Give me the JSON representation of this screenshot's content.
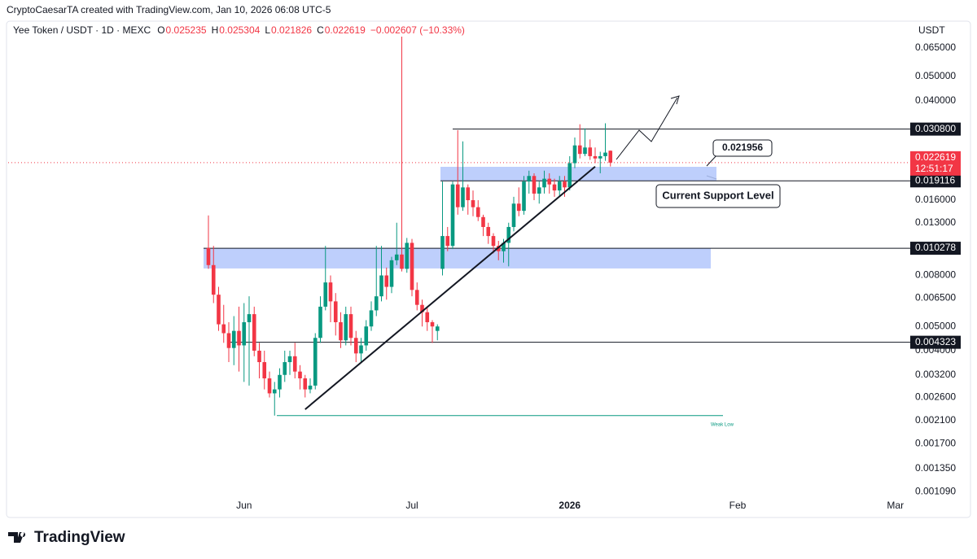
{
  "header": {
    "attribution": "CryptoCaesarTA created with TradingView.com, Jan 10, 2026 06:08 UTC-5"
  },
  "chart_data": {
    "type": "candlestick",
    "symbol": "Yee Token / USDT · 1D · MEXC",
    "ohlc_legend": [
      {
        "label": "O",
        "value": "0.025235"
      },
      {
        "label": "H",
        "value": "0.025304"
      },
      {
        "label": "L",
        "value": "0.021826"
      },
      {
        "label": "C",
        "value": "0.022619"
      }
    ],
    "change": "−0.002607 (−10.33%)",
    "currency": "USDT",
    "log_scale": true,
    "up_color": "#089981",
    "down_color": "#f23645",
    "ylim": [
      0.00103,
      0.082
    ],
    "yticks": [
      {
        "value": 0.065,
        "label": "0.065000"
      },
      {
        "value": 0.05,
        "label": "0.050000"
      },
      {
        "value": 0.04,
        "label": "0.040000"
      },
      {
        "value": 0.016,
        "label": "0.016000"
      },
      {
        "value": 0.013,
        "label": "0.013000"
      },
      {
        "value": 0.008,
        "label": "0.008000"
      },
      {
        "value": 0.0065,
        "label": "0.006500"
      },
      {
        "value": 0.005,
        "label": "0.005000"
      },
      {
        "value": 0.004,
        "label": "0.004000"
      },
      {
        "value": 0.0032,
        "label": "0.003200"
      },
      {
        "value": 0.0026,
        "label": "0.002600"
      },
      {
        "value": 0.0021,
        "label": "0.002100"
      },
      {
        "value": 0.0017,
        "label": "0.001700"
      },
      {
        "value": 0.00135,
        "label": "0.001350"
      },
      {
        "value": 0.00109,
        "label": "0.001090"
      }
    ],
    "current_price": {
      "value": 0.022619,
      "label": "0.022619",
      "countdown": "12:51:17"
    },
    "levels": [
      {
        "value": 0.0308,
        "label": "0.030800"
      },
      {
        "value": 0.019116,
        "label": "0.019116"
      },
      {
        "value": 0.010278,
        "label": "0.010278"
      },
      {
        "value": 0.004323,
        "label": "0.004323"
      }
    ],
    "zones": [
      {
        "low": 0.01916,
        "high": 0.02176
      },
      {
        "low": 0.00853,
        "high": 0.01028
      }
    ],
    "weak_low": {
      "value": 0.0022,
      "label": "Weak Low"
    },
    "trendline": {
      "from": [
        19,
        0.00233
      ],
      "to": [
        76,
        0.0218
      ]
    },
    "annotations": [
      "0.021956",
      "Current Support Level"
    ],
    "categories": [
      null,
      null,
      null,
      null,
      null,
      null,
      null,
      "Jun",
      null,
      null,
      null,
      null,
      null,
      null,
      null,
      null,
      null,
      null,
      null,
      null,
      null,
      null,
      null,
      null,
      null,
      null,
      null,
      null,
      null,
      null,
      null,
      null,
      null,
      null,
      null,
      null,
      null,
      null,
      null,
      null,
      "Jul",
      null,
      null,
      null,
      null,
      null,
      null,
      null,
      null,
      null,
      null,
      null,
      null,
      null,
      null,
      null,
      null,
      null,
      null,
      null,
      null,
      null,
      null,
      null,
      null,
      null,
      null,
      null,
      null,
      null,
      null,
      "2026",
      null,
      null,
      null,
      null,
      null,
      null,
      null,
      null,
      null,
      null,
      null,
      null,
      null,
      null,
      null,
      null,
      null,
      null,
      null,
      null,
      null,
      null,
      null,
      null,
      null,
      null,
      null,
      null,
      null,
      null,
      null,
      null,
      "Feb",
      null,
      null,
      null,
      null,
      null,
      null,
      null,
      null,
      null,
      null,
      null,
      null,
      null,
      null,
      null,
      null,
      null,
      null,
      null,
      null,
      null,
      null,
      null,
      null,
      null,
      null,
      null,
      null,
      null,
      null,
      "Mar"
    ],
    "candles": [
      [
        0.0103,
        0.0139,
        0.0085,
        0.0088
      ],
      [
        0.0088,
        0.0105,
        0.0062,
        0.0067
      ],
      [
        0.0067,
        0.0072,
        0.0048,
        0.0051
      ],
      [
        0.0051,
        0.0061,
        0.0043,
        0.0047
      ],
      [
        0.0047,
        0.0052,
        0.0036,
        0.0041
      ],
      [
        0.0041,
        0.0055,
        0.0035,
        0.0048
      ],
      [
        0.0048,
        0.006,
        0.0033,
        0.0042
      ],
      [
        0.0042,
        0.0062,
        0.003,
        0.0052
      ],
      [
        0.0052,
        0.0066,
        0.0029,
        0.0056
      ],
      [
        0.0056,
        0.006,
        0.0038,
        0.004
      ],
      [
        0.004,
        0.0043,
        0.0031,
        0.0036
      ],
      [
        0.0036,
        0.004,
        0.0028,
        0.0031
      ],
      [
        0.0031,
        0.0033,
        0.0026,
        0.0027
      ],
      [
        0.0027,
        0.003,
        0.0022,
        0.0028
      ],
      [
        0.0028,
        0.0034,
        0.0026,
        0.0032
      ],
      [
        0.0032,
        0.004,
        0.003,
        0.0036
      ],
      [
        0.0036,
        0.004,
        0.0032,
        0.0038
      ],
      [
        0.0038,
        0.0043,
        0.0031,
        0.0033
      ],
      [
        0.0033,
        0.0035,
        0.0028,
        0.0031
      ],
      [
        0.0031,
        0.0032,
        0.0026,
        0.0028
      ],
      [
        0.0028,
        0.0031,
        0.0027,
        0.0029
      ],
      [
        0.0029,
        0.0047,
        0.0028,
        0.0045
      ],
      [
        0.0045,
        0.0066,
        0.0043,
        0.006
      ],
      [
        0.006,
        0.0105,
        0.0058,
        0.0075
      ],
      [
        0.0075,
        0.008,
        0.0052,
        0.0063
      ],
      [
        0.0063,
        0.0068,
        0.0046,
        0.0052
      ],
      [
        0.0052,
        0.0057,
        0.0041,
        0.0044
      ],
      [
        0.0044,
        0.006,
        0.0042,
        0.0056
      ],
      [
        0.0056,
        0.006,
        0.0042,
        0.0045
      ],
      [
        0.0045,
        0.0048,
        0.0036,
        0.0039
      ],
      [
        0.0039,
        0.0045,
        0.0036,
        0.0042
      ],
      [
        0.0042,
        0.0053,
        0.004,
        0.005
      ],
      [
        0.005,
        0.0063,
        0.0048,
        0.0058
      ],
      [
        0.0058,
        0.0105,
        0.0055,
        0.0066
      ],
      [
        0.0066,
        0.0105,
        0.0063,
        0.008
      ],
      [
        0.008,
        0.0086,
        0.0064,
        0.0072
      ],
      [
        0.0072,
        0.0095,
        0.0068,
        0.0092
      ],
      [
        0.0092,
        0.013,
        0.0088,
        0.0097
      ],
      [
        0.0097,
        0.0722,
        0.0083,
        0.0085
      ],
      [
        0.0085,
        0.0113,
        0.0082,
        0.0108
      ],
      [
        0.0108,
        0.0112,
        0.0066,
        0.007
      ],
      [
        0.007,
        0.0075,
        0.0058,
        0.0061
      ],
      [
        0.0061,
        0.0064,
        0.005,
        0.0057
      ],
      [
        0.0057,
        0.006,
        0.0048,
        0.0052
      ],
      [
        0.0052,
        0.0053,
        0.0043,
        0.005
      ],
      [
        0.0048,
        0.0051,
        0.0044,
        0.005
      ],
      [
        0.0085,
        0.019,
        0.008,
        0.0115
      ],
      [
        0.0115,
        0.0125,
        0.01,
        0.0105
      ],
      [
        0.0105,
        0.019,
        0.0102,
        0.0185
      ],
      [
        0.0185,
        0.0305,
        0.014,
        0.015
      ],
      [
        0.015,
        0.0275,
        0.0145,
        0.018
      ],
      [
        0.018,
        0.0185,
        0.014,
        0.016
      ],
      [
        0.016,
        0.0175,
        0.0138,
        0.015
      ],
      [
        0.015,
        0.016,
        0.0132,
        0.0137
      ],
      [
        0.0137,
        0.014,
        0.0115,
        0.0125
      ],
      [
        0.0125,
        0.013,
        0.0107,
        0.0115
      ],
      [
        0.0115,
        0.0118,
        0.0098,
        0.0105
      ],
      [
        0.0105,
        0.011,
        0.0092,
        0.01
      ],
      [
        0.01,
        0.0112,
        0.009,
        0.0108
      ],
      [
        0.0108,
        0.013,
        0.0087,
        0.0125
      ],
      [
        0.0125,
        0.0165,
        0.012,
        0.0155
      ],
      [
        0.0155,
        0.018,
        0.0138,
        0.0145
      ],
      [
        0.0145,
        0.02,
        0.014,
        0.019
      ],
      [
        0.019,
        0.021,
        0.017,
        0.02
      ],
      [
        0.02,
        0.0205,
        0.016,
        0.017
      ],
      [
        0.017,
        0.019,
        0.0155,
        0.018
      ],
      [
        0.018,
        0.021,
        0.017,
        0.0195
      ],
      [
        0.0195,
        0.0205,
        0.017,
        0.0185
      ],
      [
        0.0185,
        0.0195,
        0.0165,
        0.0175
      ],
      [
        0.0175,
        0.02,
        0.0165,
        0.019
      ],
      [
        0.019,
        0.02,
        0.0165,
        0.018
      ],
      [
        0.018,
        0.024,
        0.0175,
        0.0225
      ],
      [
        0.0225,
        0.0285,
        0.0215,
        0.0265
      ],
      [
        0.0265,
        0.0322,
        0.0235,
        0.0245
      ],
      [
        0.0245,
        0.031,
        0.024,
        0.026
      ],
      [
        0.026,
        0.028,
        0.0232,
        0.024
      ],
      [
        0.024,
        0.026,
        0.0225,
        0.0235
      ],
      [
        0.0235,
        0.025,
        0.0205,
        0.024
      ],
      [
        0.024,
        0.0325,
        0.023,
        0.0248
      ],
      [
        0.025235,
        0.025304,
        0.021826,
        0.022619
      ],
      null,
      null,
      null,
      null,
      null,
      null,
      null,
      null,
      null,
      null,
      null,
      null,
      null,
      null,
      null,
      null,
      null,
      null,
      null,
      null,
      null,
      null,
      null,
      null,
      null,
      null,
      null,
      null,
      null,
      null,
      null,
      null,
      null,
      null,
      null,
      null,
      null,
      null,
      null,
      null,
      null,
      null,
      null,
      null,
      null,
      null,
      null,
      null,
      null,
      null,
      null,
      null,
      null,
      null,
      null,
      null
    ]
  },
  "footer": {
    "brand": "TradingView"
  }
}
